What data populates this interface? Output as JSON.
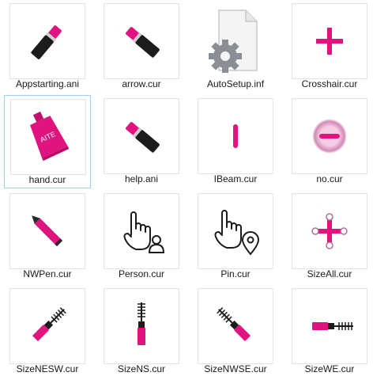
{
  "files": [
    {
      "name": "Appstarting.ani",
      "icon": "lipstick-cursor-icon",
      "selected": false
    },
    {
      "name": "arrow.cur",
      "icon": "lipstick-cursor-icon",
      "selected": false
    },
    {
      "name": "AutoSetup.inf",
      "icon": "settings-file-icon",
      "selected": false
    },
    {
      "name": "Crosshair.cur",
      "icon": "crosshair-cursor-icon",
      "selected": false
    },
    {
      "name": "hand.cur",
      "icon": "lip-gloss-tube-icon",
      "selected": true
    },
    {
      "name": "help.ani",
      "icon": "lipstick-cursor-icon",
      "selected": false
    },
    {
      "name": "IBeam.cur",
      "icon": "ibeam-cursor-icon",
      "selected": false
    },
    {
      "name": "no.cur",
      "icon": "unavailable-cursor-icon",
      "selected": false
    },
    {
      "name": "NWPen.cur",
      "icon": "pen-cursor-icon",
      "selected": false
    },
    {
      "name": "Person.cur",
      "icon": "hand-person-cursor-icon",
      "selected": false
    },
    {
      "name": "Pin.cur",
      "icon": "hand-pin-cursor-icon",
      "selected": false
    },
    {
      "name": "SizeAll.cur",
      "icon": "move-cursor-icon",
      "selected": false
    },
    {
      "name": "SizeNESW.cur",
      "icon": "mascara-diagonal-ne-icon",
      "selected": false
    },
    {
      "name": "SizeNS.cur",
      "icon": "mascara-vertical-icon",
      "selected": false
    },
    {
      "name": "SizeNWSE.cur",
      "icon": "mascara-diagonal-nw-icon",
      "selected": false
    },
    {
      "name": "SizeWE.cur",
      "icon": "mascara-horizontal-icon",
      "selected": false
    }
  ],
  "colors": {
    "accent": "#e0137f",
    "dark": "#1c1c1c",
    "selection_border": "#99d1ff"
  }
}
